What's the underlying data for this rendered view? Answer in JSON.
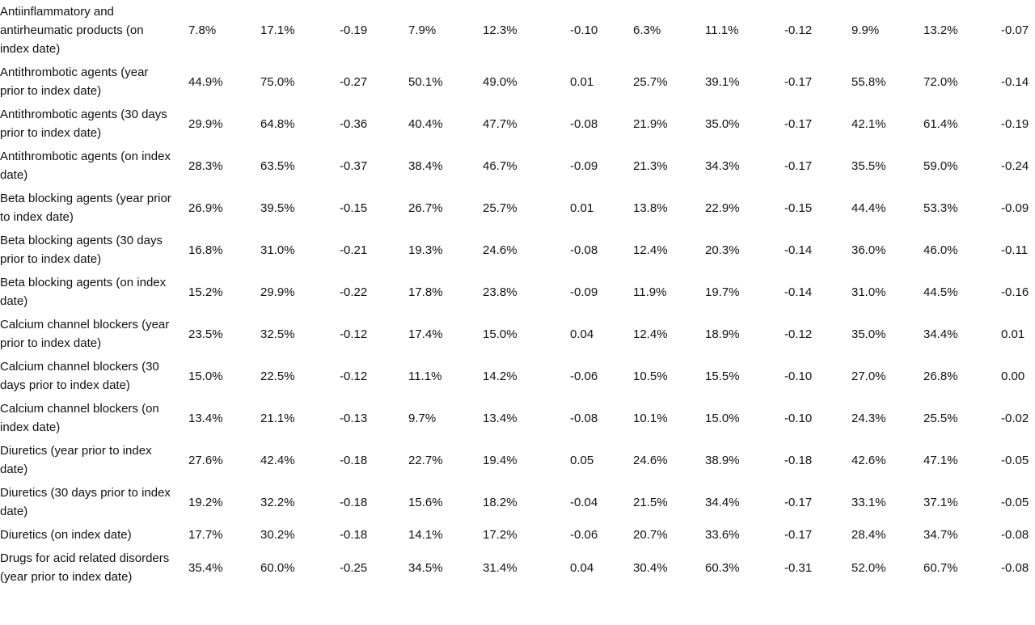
{
  "table": {
    "rows": [
      [
        "Antiinflammatory and antirheumatic products (on index date)",
        "7.8%",
        "17.1%",
        "-0.19",
        "7.9%",
        "12.3%",
        "-0.10",
        "6.3%",
        "11.1%",
        "-0.12",
        "9.9%",
        "13.2%",
        "-0.07"
      ],
      [
        "Antithrombotic agents (year prior to index date)",
        "44.9%",
        "75.0%",
        "-0.27",
        "50.1%",
        "49.0%",
        "0.01",
        "25.7%",
        "39.1%",
        "-0.17",
        "55.8%",
        "72.0%",
        "-0.14"
      ],
      [
        "Antithrombotic agents (30 days prior to index date)",
        "29.9%",
        "64.8%",
        "-0.36",
        "40.4%",
        "47.7%",
        "-0.08",
        "21.9%",
        "35.0%",
        "-0.17",
        "42.1%",
        "61.4%",
        "-0.19"
      ],
      [
        "Antithrombotic agents (on index date)",
        "28.3%",
        "63.5%",
        "-0.37",
        "38.4%",
        "46.7%",
        "-0.09",
        "21.3%",
        "34.3%",
        "-0.17",
        "35.5%",
        "59.0%",
        "-0.24"
      ],
      [
        "Beta blocking agents  (year prior to index date)",
        "26.9%",
        "39.5%",
        "-0.15",
        "26.7%",
        "25.7%",
        "0.01",
        "13.8%",
        "22.9%",
        "-0.15",
        "44.4%",
        "53.3%",
        "-0.09"
      ],
      [
        "Beta blocking agents (30 days prior to index date)",
        "16.8%",
        "31.0%",
        "-0.21",
        "19.3%",
        "24.6%",
        "-0.08",
        "12.4%",
        "20.3%",
        "-0.14",
        "36.0%",
        "46.0%",
        "-0.11"
      ],
      [
        "Beta blocking agents (on index date)",
        "15.2%",
        "29.9%",
        "-0.22",
        "17.8%",
        "23.8%",
        "-0.09",
        "11.9%",
        "19.7%",
        "-0.14",
        "31.0%",
        "44.5%",
        "-0.16"
      ],
      [
        "Calcium channel blockers (year prior to index date)",
        "23.5%",
        "32.5%",
        "-0.12",
        "17.4%",
        "15.0%",
        "0.04",
        "12.4%",
        "18.9%",
        "-0.12",
        "35.0%",
        "34.4%",
        "0.01"
      ],
      [
        "Calcium channel blockers (30 days prior to index date)",
        "15.0%",
        "22.5%",
        "-0.12",
        "11.1%",
        "14.2%",
        "-0.06",
        "10.5%",
        "15.5%",
        "-0.10",
        "27.0%",
        "26.8%",
        "0.00"
      ],
      [
        "Calcium channel blockers (on index date)",
        "13.4%",
        "21.1%",
        "-0.13",
        "9.7%",
        "13.4%",
        "-0.08",
        "10.1%",
        "15.0%",
        "-0.10",
        "24.3%",
        "25.5%",
        "-0.02"
      ],
      [
        "Diuretics (year prior to index date)",
        "27.6%",
        "42.4%",
        "-0.18",
        "22.7%",
        "19.4%",
        "0.05",
        "24.6%",
        "38.9%",
        "-0.18",
        "42.6%",
        "47.1%",
        "-0.05"
      ],
      [
        "Diuretics (30 days prior to index date)",
        "19.2%",
        "32.2%",
        "-0.18",
        "15.6%",
        "18.2%",
        "-0.04",
        "21.5%",
        "34.4%",
        "-0.17",
        "33.1%",
        "37.1%",
        "-0.05"
      ],
      [
        "Diuretics (on index date)",
        "17.7%",
        "30.2%",
        "-0.18",
        "14.1%",
        "17.2%",
        "-0.06",
        "20.7%",
        "33.6%",
        "-0.17",
        "28.4%",
        "34.7%",
        "-0.08"
      ],
      [
        "Drugs for acid related disorders (year prior to index date)",
        "35.4%",
        "60.0%",
        "-0.25",
        "34.5%",
        "31.4%",
        "0.04",
        "30.4%",
        "60.3%",
        "-0.31",
        "52.0%",
        "60.7%",
        "-0.08"
      ]
    ]
  }
}
